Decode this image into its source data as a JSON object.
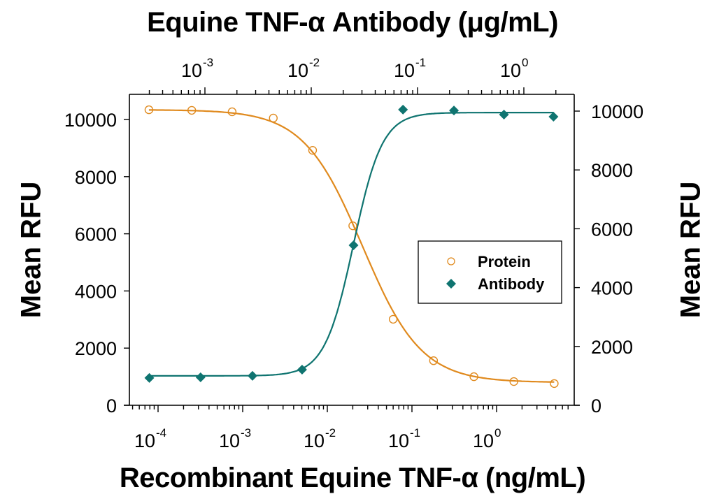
{
  "chart_data": {
    "type": "scatter",
    "title_top": "Equine TNF-α Antibody (μg/mL)",
    "xlabel": "Recombinant Equine TNF-α (ng/mL)",
    "ylabel_left": "Mean RFU",
    "ylabel_right": "Mean RFU",
    "x_scale": "log",
    "x_bottom_ticks": [
      "10^-4",
      "10^-3",
      "10^-2",
      "10^-1",
      "10^0"
    ],
    "x_top_ticks": [
      "10^-3",
      "10^-2",
      "10^-1",
      "10^0"
    ],
    "y_left_ticks": [
      0,
      2000,
      4000,
      6000,
      8000,
      10000
    ],
    "y_right_ticks": [
      0,
      2000,
      4000,
      6000,
      8000,
      10000
    ],
    "ylim_left": [
      0,
      10500
    ],
    "ylim_right": [
      0,
      10500
    ],
    "grid": false,
    "legend_position": "center-right",
    "series": [
      {
        "name": "Protein",
        "axis": "bottom-left",
        "marker": "open-circle",
        "color": "#E08A1E",
        "x": [
          7.8e-05,
          0.00025,
          0.00075,
          0.0023,
          0.0067,
          0.02,
          0.06,
          0.18,
          0.54,
          1.6,
          4.8
        ],
        "y": [
          10340,
          10320,
          10270,
          10050,
          8920,
          6280,
          3010,
          1560,
          1000,
          830,
          760
        ],
        "fit": "4PL decreasing"
      },
      {
        "name": "Antibody",
        "axis": "top-right",
        "marker": "filled-diamond",
        "color": "#0F7470",
        "x": [
          0.0003,
          0.00091,
          0.0028,
          0.0082,
          0.025,
          0.073,
          0.22,
          0.65,
          1.9
        ],
        "y": [
          930,
          950,
          1000,
          1210,
          5440,
          10050,
          10020,
          9880,
          9810
        ],
        "fit": "4PL increasing"
      }
    ]
  },
  "legend": {
    "items": [
      {
        "label": "Protein",
        "marker": "open-circle",
        "color": "#E08A1E"
      },
      {
        "label": "Antibody",
        "marker": "filled-diamond",
        "color": "#0F7470"
      }
    ]
  },
  "labels": {
    "top_title": "Equine TNF-α Antibody (μg/mL)",
    "bottom_title": "Recombinant Equine TNF-α (ng/mL)",
    "left_ylabel": "Mean RFU",
    "right_ylabel": "Mean RFU"
  }
}
